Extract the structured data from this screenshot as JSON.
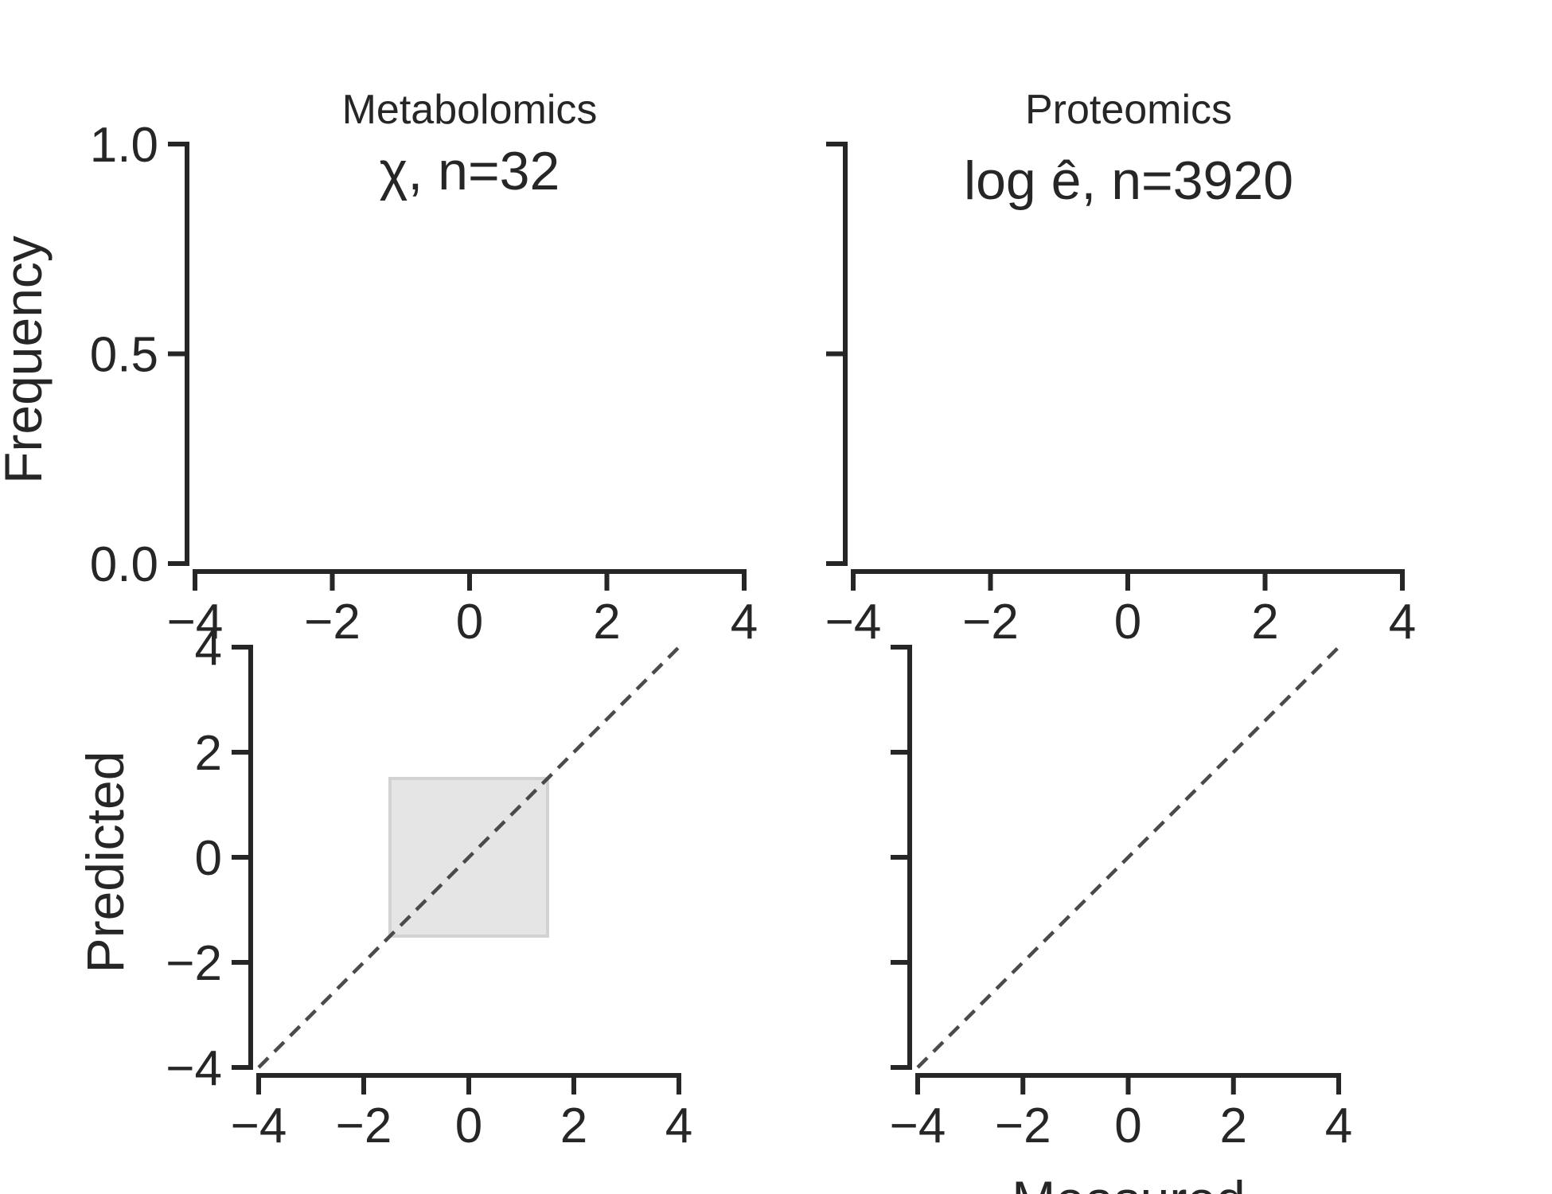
{
  "colors": {
    "axes": "#262626",
    "identity_line": "#4a4a4a",
    "shaded_region": "#e5e5e5",
    "background": "#ffffff"
  },
  "chart_data": [
    {
      "type": "bar",
      "panel": "top-left",
      "title": "Metabolomics",
      "subtitle": "χ, n=32",
      "xlabel": "",
      "ylabel": "Frequency",
      "xlim": [
        -4,
        4
      ],
      "ylim": [
        0,
        1
      ],
      "xticks": [
        -4,
        -2,
        0,
        2,
        4
      ],
      "yticks": [
        0,
        0.5,
        1
      ],
      "xtick_labels": [
        "−4",
        "−2",
        "0",
        "2",
        "4"
      ],
      "ytick_labels": [
        "0.0",
        "0.5",
        "1.0"
      ],
      "grid": false,
      "series": []
    },
    {
      "type": "bar",
      "panel": "top-right",
      "title": "Proteomics",
      "subtitle": "log ê, n=3920",
      "xlabel": "",
      "ylabel": "",
      "xlim": [
        -4,
        4
      ],
      "ylim": [
        0,
        1
      ],
      "xticks": [
        -4,
        -2,
        0,
        2,
        4
      ],
      "yticks": [
        0,
        0.5,
        1
      ],
      "xtick_labels": [
        "−4",
        "−2",
        "0",
        "2",
        "4"
      ],
      "ytick_labels": [],
      "grid": false,
      "series": []
    },
    {
      "type": "scatter",
      "panel": "bottom-left",
      "xlabel": "",
      "ylabel": "Predicted",
      "xlim": [
        -4,
        4
      ],
      "ylim": [
        -4,
        4
      ],
      "xticks": [
        -4,
        -2,
        0,
        2,
        4
      ],
      "yticks": [
        -4,
        -2,
        0,
        2,
        4
      ],
      "xtick_labels": [
        "−4",
        "−2",
        "0",
        "2",
        "4"
      ],
      "ytick_labels": [
        "−4",
        "−2",
        "0",
        "2",
        "4"
      ],
      "grid": false,
      "identity_line": {
        "from": [
          -4,
          -4
        ],
        "to": [
          4,
          4
        ],
        "style": "dashed"
      },
      "shaded_region": {
        "x": [
          -1.5,
          1.5
        ],
        "y": [
          -1.5,
          1.5
        ]
      },
      "series": []
    },
    {
      "type": "scatter",
      "panel": "bottom-right",
      "xlabel": "Measured",
      "ylabel": "",
      "xlim": [
        -4,
        4
      ],
      "ylim": [
        -4,
        4
      ],
      "xticks": [
        -4,
        -2,
        0,
        2,
        4
      ],
      "yticks": [
        -4,
        -2,
        0,
        2,
        4
      ],
      "xtick_labels": [
        "−4",
        "−2",
        "0",
        "2",
        "4"
      ],
      "ytick_labels": [],
      "grid": false,
      "identity_line": {
        "from": [
          -4,
          -4
        ],
        "to": [
          4,
          4
        ],
        "style": "dashed"
      },
      "series": []
    }
  ]
}
